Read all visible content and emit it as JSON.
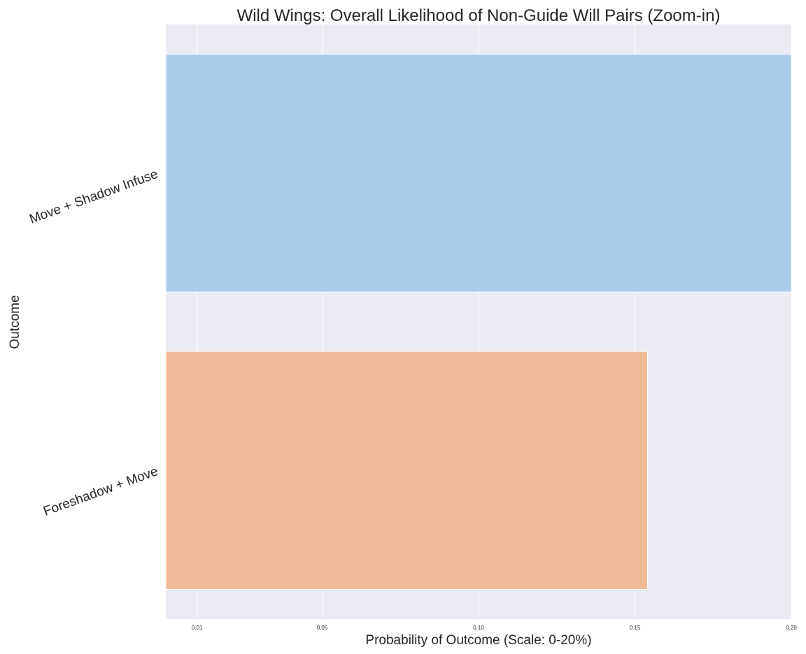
{
  "chart_data": {
    "type": "bar",
    "orientation": "horizontal",
    "title": "Wild Wings: Overall Likelihood of Non-Guide Will Pairs (Zoom-in)",
    "xlabel": "Probability of Outcome (Scale: 0-20%)",
    "ylabel": "Outcome",
    "categories": [
      "Move + Shadow Infuse",
      "Foreshadow + Move"
    ],
    "values": [
      0.2,
      0.154
    ],
    "colors": [
      "#abc9eb",
      "#f0b894"
    ],
    "xlim": [
      0,
      0.2
    ],
    "xticks": [
      0.01,
      0.05,
      0.1,
      0.15,
      0.2
    ],
    "xtick_labels": [
      "0.01",
      "0.05",
      "0.10",
      "0.15",
      "0.20"
    ],
    "grid": true,
    "background": "#eaeaf2",
    "legend": "none"
  }
}
